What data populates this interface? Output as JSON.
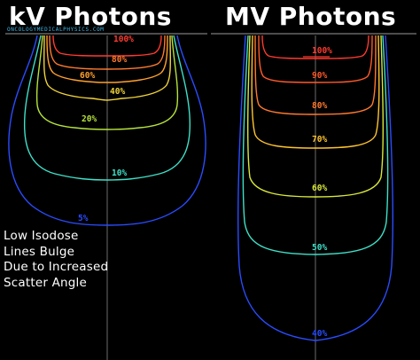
{
  "titles": {
    "kv": "kV Photons",
    "mv": "MV Photons",
    "source": "ONCOLOGYMEDICALPHYSICS.COM"
  },
  "note": {
    "lines": [
      "Low Isodose",
      "Lines Bulge",
      "Due to Increased",
      "Scatter Angle"
    ]
  },
  "colors": {
    "c100": "#ff3a2e",
    "c90": "#ff5a2a",
    "c80": "#ff7a2e",
    "c60": "#ffa02e",
    "c40": "#f2d43a",
    "c20": "#b6e23c",
    "c10": "#3fe0c8",
    "c5": "#2a4cff",
    "c70": "#ffc52e",
    "c50": "#3fe0c8",
    "c40mv": "#2a4cff",
    "axis": "#8a8a8a"
  },
  "kv_labels": [
    {
      "text": "100%",
      "color": "#ff3a2e"
    },
    {
      "text": "80%",
      "color": "#ff7a2e"
    },
    {
      "text": "60%",
      "color": "#ffa02e"
    },
    {
      "text": "40%",
      "color": "#f2d43a"
    },
    {
      "text": "20%",
      "color": "#b6e23c"
    },
    {
      "text": "10%",
      "color": "#3fe0c8"
    },
    {
      "text": "5%",
      "color": "#2a4cff"
    }
  ],
  "mv_labels": [
    {
      "text": "100%",
      "color": "#ff3a2e"
    },
    {
      "text": "90%",
      "color": "#ff5a2a"
    },
    {
      "text": "80%",
      "color": "#ff7a2e"
    },
    {
      "text": "70%",
      "color": "#ffc52e"
    },
    {
      "text": "60%",
      "color": "#d8e83a"
    },
    {
      "text": "50%",
      "color": "#3fe0c8"
    },
    {
      "text": "40%",
      "color": "#2a4cff"
    }
  ]
}
